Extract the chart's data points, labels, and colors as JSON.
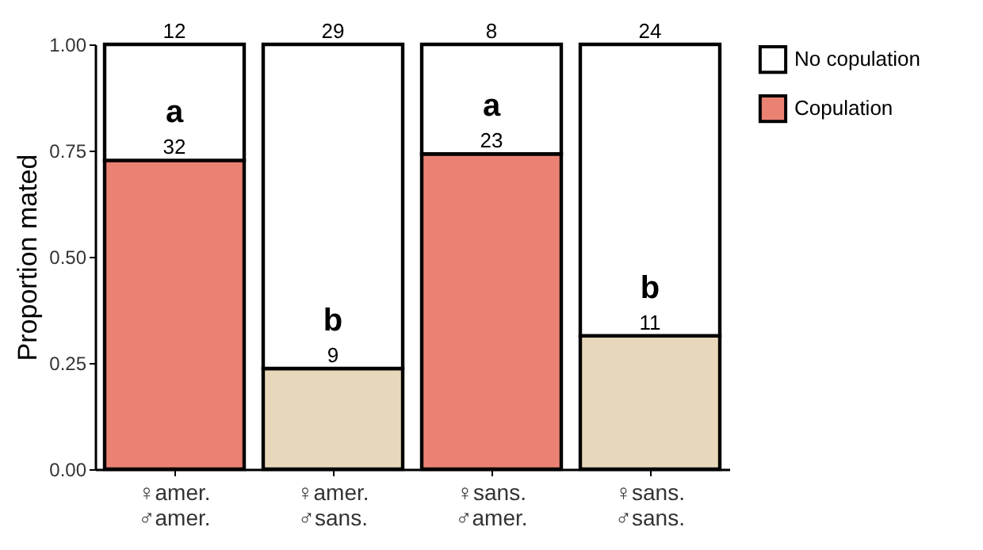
{
  "chart_data": {
    "type": "bar",
    "stacked": true,
    "ylabel": "Proportion mated",
    "categories": [
      "♀amer.\n♂amer.",
      "♀amer.\n♂sans.",
      "♀sans.\n♂amer.",
      "♀sans.\n♂sans."
    ],
    "series": [
      {
        "name": "Copulation",
        "colors": [
          "#ea8274",
          "#e8d8bb",
          "#ea8274",
          "#e8d8bb"
        ],
        "values": [
          0.727,
          0.237,
          0.742,
          0.314
        ]
      },
      {
        "name": "No copulation",
        "color": "#ffffff",
        "values": [
          0.273,
          0.763,
          0.258,
          0.686
        ]
      }
    ],
    "ylim": [
      0,
      1
    ],
    "yticks": [
      {
        "value": 0,
        "label": "0.00"
      },
      {
        "value": 0.25,
        "label": "0.25"
      },
      {
        "value": 0.5,
        "label": "0.50"
      },
      {
        "value": 0.75,
        "label": "0.75"
      },
      {
        "value": 1,
        "label": "1.00"
      }
    ],
    "grid": false,
    "legend": "right",
    "annotations": [
      {
        "text": "12",
        "x": "♀amer.\n♂amer.",
        "y": 1
      },
      {
        "text": "29",
        "x": "♀amer.\n♂sans.",
        "y": 1
      },
      {
        "text": "8",
        "x": "♀sans.\n♂amer.",
        "y": 1
      },
      {
        "text": "24",
        "x": "♀sans.\n♂sans.",
        "y": 1
      },
      {
        "text": "32",
        "x": "♀amer.\n♂amer.",
        "y": 0.727
      },
      {
        "text": "9",
        "x": "♀amer.\n♂sans.",
        "y": 0.237
      },
      {
        "text": "23",
        "x": "♀sans.\n♂amer.",
        "y": 0.742
      },
      {
        "text": "11",
        "x": "♀sans.\n♂sans.",
        "y": 0.314
      },
      {
        "text": "a",
        "x": "♀amer.\n♂amer.",
        "y": 0.727
      },
      {
        "text": "b",
        "x": "♀amer.\n♂sans.",
        "y": 0.237
      },
      {
        "text": "a",
        "x": "♀sans.\n♂amer.",
        "y": 0.742
      },
      {
        "text": "b",
        "x": "♀sans.\n♂sans.",
        "y": 0.314
      }
    ]
  }
}
